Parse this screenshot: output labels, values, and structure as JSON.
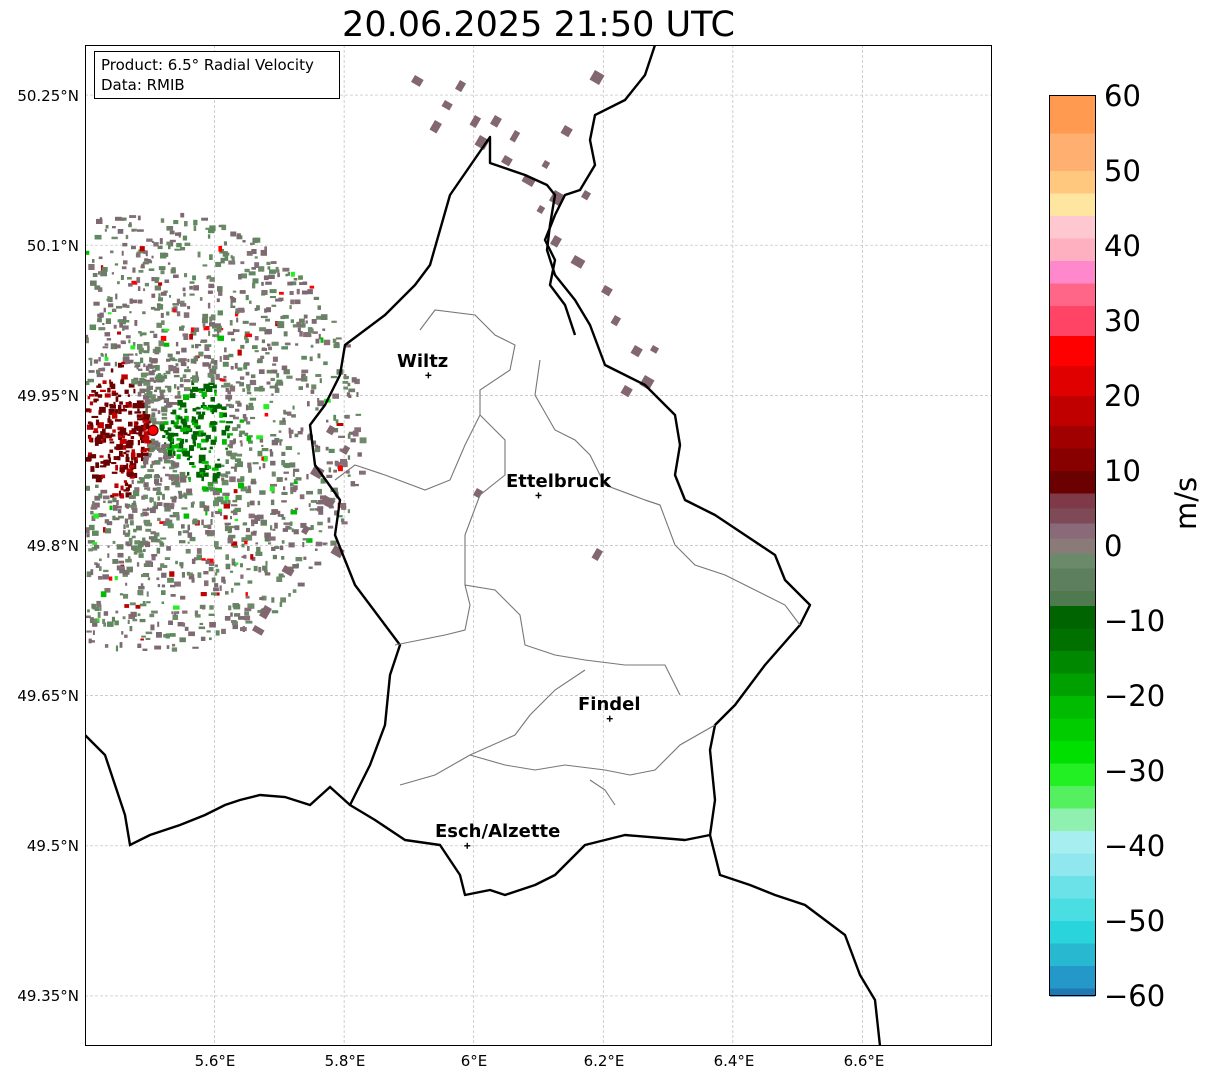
{
  "title": "20.06.2025 21:50 UTC",
  "info_box": {
    "product": "Product: 6.5° Radial Velocity",
    "data_source": "Data: RMIB"
  },
  "map": {
    "lon_range": [
      5.4,
      6.8
    ],
    "lat_range": [
      49.3,
      50.3
    ],
    "lat_ticks": [
      "50.25°N",
      "50.1°N",
      "49.95°N",
      "49.8°N",
      "49.65°N",
      "49.5°N",
      "49.35°N"
    ],
    "lon_ticks": [
      "5.6°E",
      "5.8°E",
      "6°E",
      "6.2°E",
      "6.4°E",
      "6.6°E"
    ],
    "gridlines": true,
    "radar_site": {
      "lon": 5.505,
      "lat": 49.915
    },
    "cities": [
      {
        "name": "Wiltz",
        "lon": 5.93,
        "lat": 49.97
      },
      {
        "name": "Ettelbruck",
        "lon": 6.1,
        "lat": 49.85
      },
      {
        "name": "Findel",
        "lon": 6.21,
        "lat": 49.627
      },
      {
        "name": "Esch/Alzette",
        "lon": 5.99,
        "lat": 49.5
      }
    ]
  },
  "colorbar": {
    "label": "m/s",
    "range": [
      -60,
      60
    ],
    "ticks": [
      "60",
      "50",
      "40",
      "30",
      "20",
      "10",
      "0",
      "−10",
      "−20",
      "−30",
      "−40",
      "−50",
      "−60"
    ],
    "colors": {
      "neg60": "#1f77b4",
      "neg50": "#2ad4dc",
      "neg40": "#a6eef0",
      "neg35": "#8ff0b0",
      "neg30": "#22f022",
      "neg20": "#00bb00",
      "neg10": "#006400",
      "zero": "#7a7d70",
      "pos5": "#7e4a58",
      "pos10": "#6b0000",
      "pos20": "#c00000",
      "pos30": "#ff0000",
      "pos40": "#ff88cc",
      "pos45": "#ffc8d0",
      "pos50": "#ffe6a0",
      "pos60": "#ff9a50"
    }
  }
}
